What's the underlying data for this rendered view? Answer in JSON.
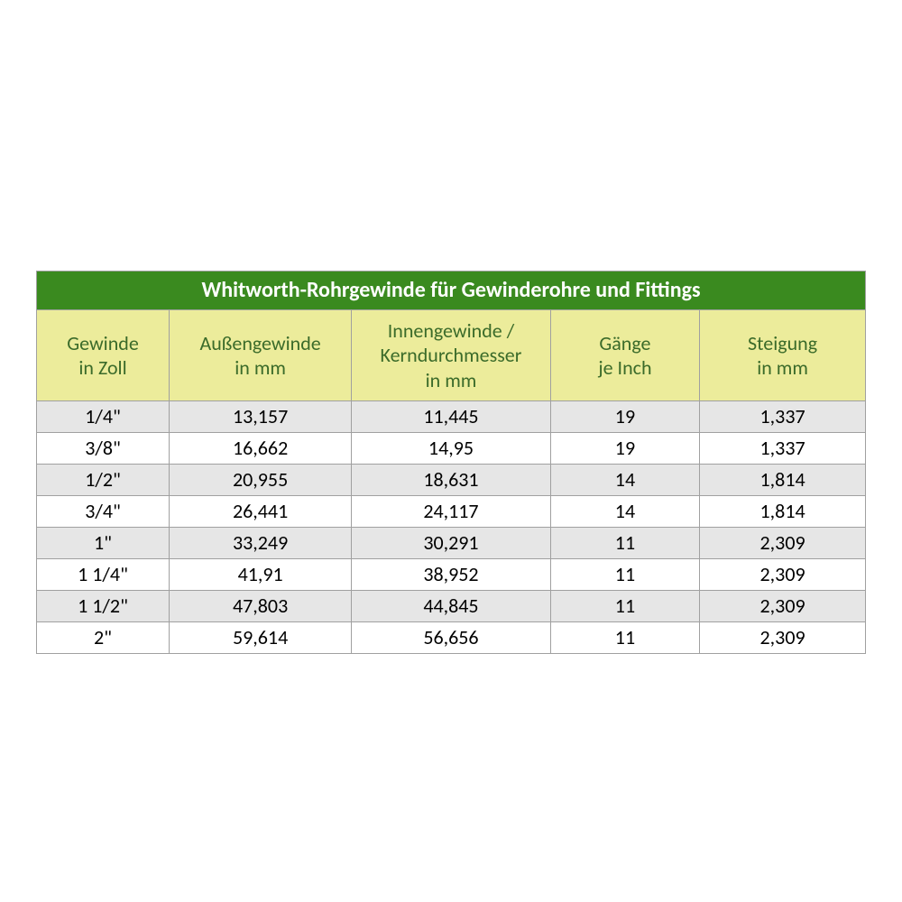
{
  "table": {
    "title": "Whitworth-Rohrgewinde für Gewinderohre und Fittings",
    "colors": {
      "title_bg": "#3a8a1f",
      "title_text": "#ffffff",
      "header_bg": "#ecec9b",
      "header_text": "#3b6b2a",
      "row_bg": "#ffffff",
      "row_alt_bg": "#e6e6e6",
      "border": "#a0a0a0",
      "cell_text": "#000000"
    },
    "column_widths_pct": [
      16,
      22,
      24,
      18,
      20
    ],
    "columns": [
      {
        "line1": "Gewinde",
        "line2": "in Zoll"
      },
      {
        "line1": "Außengewinde",
        "line2": "in mm"
      },
      {
        "line1": "Innengewinde /",
        "line2": "Kerndurchmesser",
        "line3": "in mm"
      },
      {
        "line1": "Gänge",
        "line2": "je Inch"
      },
      {
        "line1": "Steigung",
        "line2": "in mm"
      }
    ],
    "rows": [
      [
        "1/4\"",
        "13,157",
        "11,445",
        "19",
        "1,337"
      ],
      [
        "3/8\"",
        "16,662",
        "14,95",
        "19",
        "1,337"
      ],
      [
        "1/2\"",
        "20,955",
        "18,631",
        "14",
        "1,814"
      ],
      [
        "3/4\"",
        "26,441",
        "24,117",
        "14",
        "1,814"
      ],
      [
        "1\"",
        "33,249",
        "30,291",
        "11",
        "2,309"
      ],
      [
        "1 1/4\"",
        "41,91",
        "38,952",
        "11",
        "2,309"
      ],
      [
        "1 1/2\"",
        "47,803",
        "44,845",
        "11",
        "2,309"
      ],
      [
        "2\"",
        "59,614",
        "56,656",
        "11",
        "2,309"
      ]
    ],
    "shaded_row_indices": [
      0,
      2,
      4,
      6
    ]
  }
}
